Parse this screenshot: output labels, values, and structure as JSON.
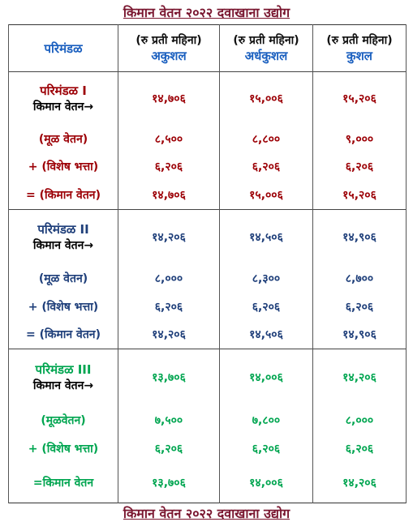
{
  "title": "किमान वेतन २०२२ दवाखाना  उद्योग",
  "table": {
    "header": {
      "zone": "परिमंडळ",
      "columns": [
        {
          "unit": "(रु प्रती महिना)",
          "label": "अकुशल"
        },
        {
          "unit": "(रु प्रती महिना)",
          "label": "अर्धकुशल"
        },
        {
          "unit": "(रु प्रती महिना)",
          "label": "कुशल"
        }
      ]
    },
    "sections": [
      {
        "zone": "परिमंडळ I",
        "min_label": "किमान वेतन→",
        "color": "#9c0006",
        "min_values": [
          "१४,७०६",
          "१५,००६",
          "१५,२०६"
        ],
        "rows": [
          {
            "label": "(मूळ वेतन)",
            "values": [
              "८,५००",
              "८,८००",
              "९,०००"
            ]
          },
          {
            "label": "+ (विशेष भत्ता)",
            "values": [
              "६,२०६",
              "६,२०६",
              "६,२०६"
            ]
          },
          {
            "label": "= (किमान वेतन)",
            "values": [
              "१४,७०६",
              "१५,००६",
              "१५,२०६"
            ]
          }
        ]
      },
      {
        "zone": "परिमंडळ II",
        "min_label": "किमान वेतन→",
        "color": "#1f3f7a",
        "min_values": [
          "१४,२०६",
          "१४,५०६",
          "१४,९०६"
        ],
        "rows": [
          {
            "label": "(मूळ वेतन)",
            "values": [
              "८,०००",
              "८,३००",
              "८,७००"
            ]
          },
          {
            "label": "+ (विशेष भत्ता)",
            "values": [
              "६,२०६",
              "६,२०६",
              "६,२०६"
            ]
          },
          {
            "label": "= (किमान वेतन)",
            "values": [
              "१४,२०६",
              "१४,५०६",
              "१४,९०६"
            ]
          }
        ]
      },
      {
        "zone": "परिमंडळ III",
        "min_label": "किमान वेतन→",
        "color": "#00a550",
        "min_values": [
          "१३,७०६",
          "१४,००६",
          "१४,२०६"
        ],
        "rows": [
          {
            "label": "(मूळवेतन)",
            "values": [
              "७,५००",
              "७,८००",
              "८,०००"
            ]
          },
          {
            "label": "+ (विशेष भत्ता)",
            "values": [
              "६,२०६",
              "६,२०६",
              "६,२०६"
            ]
          },
          {
            "label": "=किमान वेतन",
            "values": [
              "१३,७०६",
              "१४,००६",
              "१४,२०६"
            ]
          }
        ]
      }
    ]
  },
  "footer_title": "किमान वेतन २०२२ दवाखाना  उद्योग"
}
